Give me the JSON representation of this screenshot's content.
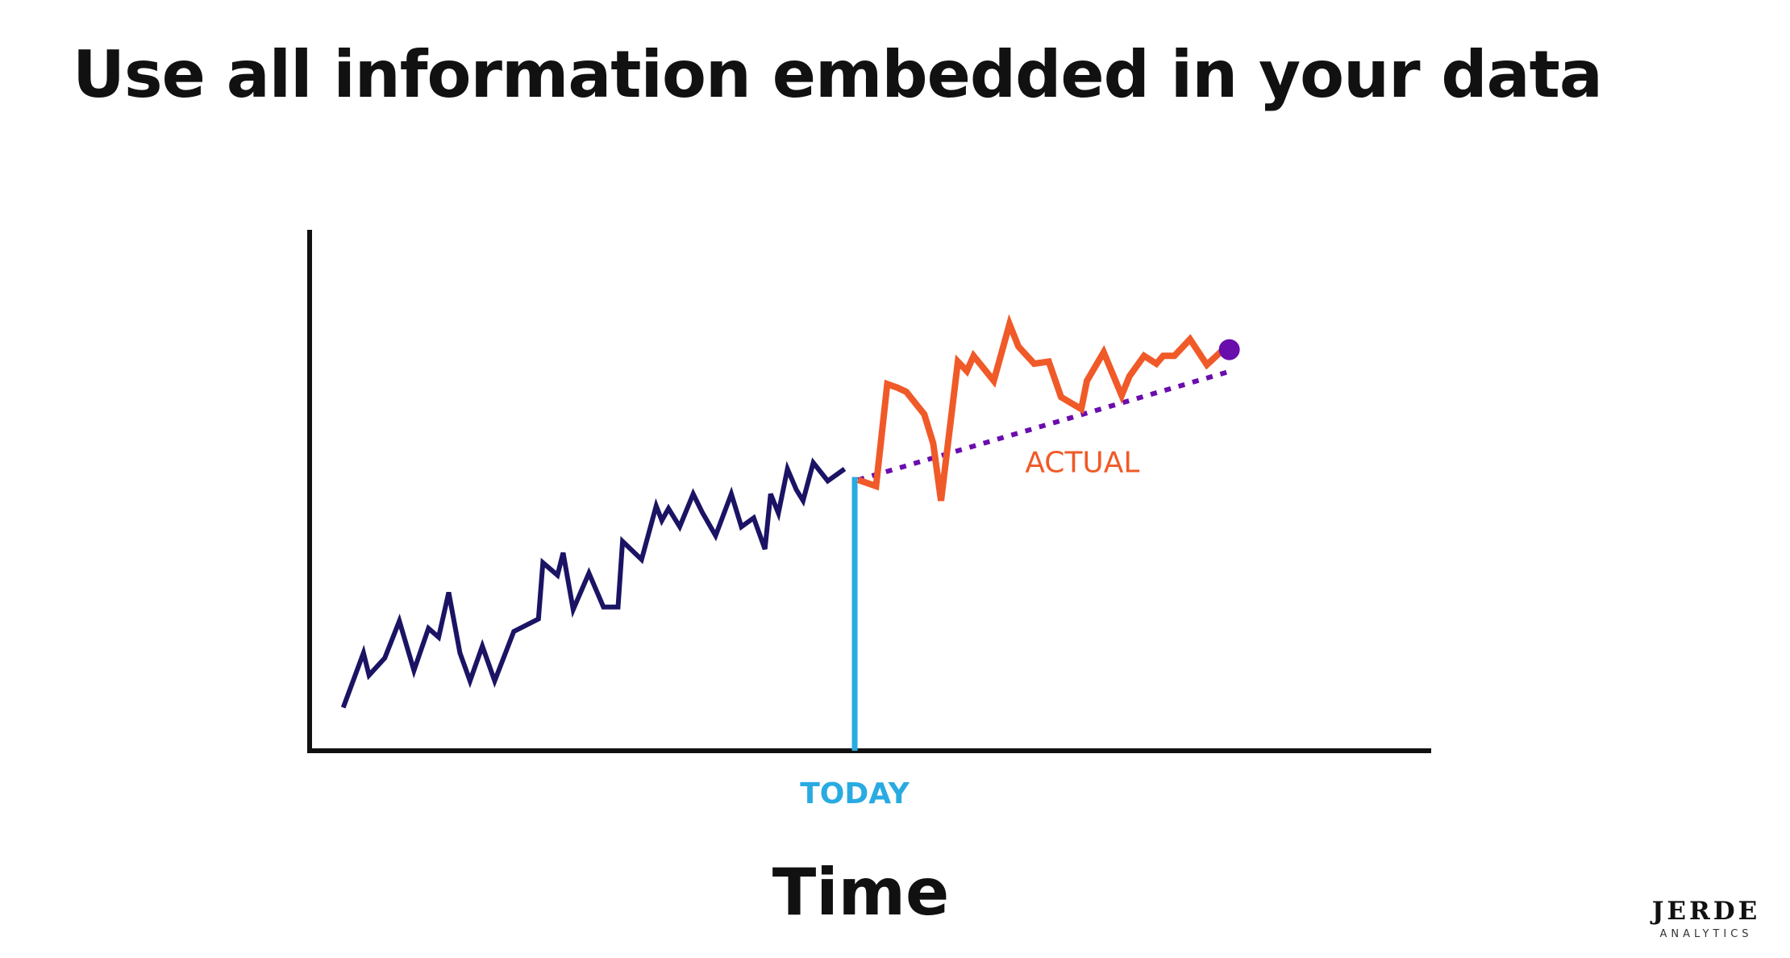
{
  "title": "Use all information embedded in your data",
  "logo": {
    "name": "JERDE",
    "subtitle": "ANALYTICS"
  },
  "chart_data": {
    "type": "line",
    "title": "",
    "xlabel": "Time",
    "ylabel": "",
    "grid": false,
    "ylim": [
      0,
      100
    ],
    "x_range": [
      0,
      100
    ],
    "today": {
      "x": 48.6,
      "label": "TODAY"
    },
    "series": [
      {
        "role": "history",
        "color": "#1b1464",
        "x": [
          3.0,
          4.8,
          5.3,
          6.7,
          8.0,
          9.3,
          10.6,
          11.5,
          12.4,
          13.4,
          14.3,
          15.4,
          16.5,
          18.2,
          20.4,
          20.8,
          22.1,
          22.6,
          23.5,
          24.9,
          26.2,
          27.5,
          27.9,
          29.6,
          30.9,
          31.4,
          32.0,
          33.0,
          34.2,
          35.0,
          36.2,
          37.6,
          38.5,
          39.6,
          40.6,
          41.1,
          41.8,
          42.6,
          43.4,
          44.0,
          44.9,
          46.2,
          47.7
        ],
        "y": [
          8.3,
          18.8,
          14.5,
          17.8,
          24.9,
          15.4,
          23.5,
          21.8,
          30.4,
          18.8,
          13.4,
          20.1,
          13.4,
          22.9,
          25.3,
          36.1,
          33.7,
          38.0,
          27.1,
          34.1,
          27.6,
          27.6,
          40.2,
          36.7,
          47.0,
          44.2,
          46.5,
          43.0,
          49.3,
          45.8,
          41.3,
          49.3,
          43.0,
          44.7,
          38.7,
          49.3,
          45.6,
          54.1,
          50.1,
          48.0,
          55.3,
          51.8,
          54.1
        ]
      },
      {
        "role": "forecast",
        "color": "#6a0dad",
        "style": "dotted",
        "x": [
          48.9,
          82.0
        ],
        "y": [
          52.0,
          72.8
        ]
      },
      {
        "name": "ACTUAL",
        "role": "actual",
        "color": "#f05a28",
        "x": [
          48.9,
          50.5,
          51.5,
          52.4,
          53.2,
          54.8,
          55.6,
          56.3,
          57.8,
          58.6,
          59.2,
          61.0,
          62.4,
          63.2,
          64.6,
          65.9,
          67.0,
          67.7,
          68.8,
          69.3,
          70.8,
          72.4,
          73.1,
          74.4,
          75.5,
          76.1,
          77.1,
          78.5,
          80.0,
          81.2,
          82.0
        ],
        "y": [
          52.0,
          50.8,
          70.4,
          69.7,
          68.9,
          64.6,
          59.0,
          48.0,
          74.7,
          72.9,
          75.8,
          71.0,
          81.9,
          77.6,
          74.3,
          74.7,
          67.9,
          67.0,
          65.6,
          71.0,
          76.5,
          68.2,
          71.9,
          75.8,
          74.3,
          75.8,
          75.8,
          79.0,
          74.1,
          76.5,
          77.0
        ]
      }
    ],
    "annotations": [
      {
        "text": "ACTUAL",
        "x": 68.9,
        "y": 53.5,
        "color": "#f05a28"
      }
    ],
    "end_point": {
      "x": 82.0,
      "y": 77.0,
      "color": "#6a0dad"
    },
    "today_color": "#29abe2",
    "axis_color": "#111111"
  }
}
